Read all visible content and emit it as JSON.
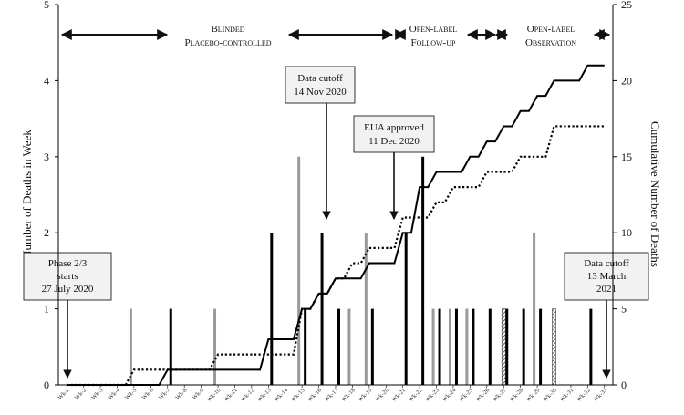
{
  "chart_data": {
    "type": "bar",
    "categories": [
      "Wk-1",
      "Wk-2",
      "Wk-3",
      "Wk-4",
      "Wk-5",
      "Wk-6",
      "Wk-7",
      "Wk-8",
      "Wk-9",
      "Wk-10",
      "Wk-11",
      "Wk-12",
      "Wk-13",
      "Wk-14",
      "Wk-15",
      "Wk-16",
      "Wk-17",
      "Wk-18",
      "Wk-19",
      "Wk-20",
      "Wk-21",
      "Wk-22",
      "Wk-23",
      "Wk-24",
      "Wk-25",
      "Wk-26",
      "Wk-27",
      "Wk-28",
      "Wk-29",
      "Wk-30",
      "Wk-31",
      "Wk-32",
      "Wk-33"
    ],
    "ylabel": "Number of Deaths in Week",
    "y2label": "Cumulative Number of Deaths",
    "ylim": [
      0,
      5
    ],
    "y2lim": [
      0,
      25
    ],
    "yticks": [
      "0",
      "1",
      "2",
      "3",
      "4",
      "5"
    ],
    "y2ticks": [
      "0",
      "5",
      "10",
      "15",
      "20",
      "25"
    ],
    "series": [
      {
        "style": "black-bar",
        "values": [
          0,
          0,
          0,
          0,
          0,
          0,
          1,
          0,
          0,
          0,
          0,
          0,
          2,
          0,
          1,
          2,
          1,
          0,
          1,
          0,
          2,
          3,
          1,
          1,
          1,
          1,
          1,
          1,
          1,
          0,
          0,
          1,
          0
        ]
      },
      {
        "style": "gray-bar",
        "values": [
          0,
          0,
          0,
          0,
          1,
          0,
          0,
          0,
          0,
          1,
          0,
          0,
          0,
          0,
          3,
          0,
          0,
          1,
          2,
          0,
          0,
          0,
          1,
          1,
          1,
          0,
          0,
          0,
          2,
          0,
          0,
          0,
          0
        ]
      },
      {
        "style": "hatched-bar",
        "values": [
          0,
          0,
          0,
          0,
          0,
          0,
          0,
          0,
          0,
          0,
          0,
          0,
          0,
          0,
          0,
          0,
          0,
          0,
          0,
          0,
          0,
          0,
          0,
          0,
          0,
          0,
          1,
          0,
          0,
          1,
          0,
          0,
          0
        ]
      },
      {
        "style": "solid-line",
        "axis": "right",
        "values": [
          0,
          0,
          0,
          0,
          0,
          0,
          1,
          1,
          1,
          1,
          1,
          1,
          3,
          3,
          5,
          6,
          7,
          7,
          8,
          8,
          10,
          13,
          14,
          14,
          15,
          16,
          17,
          18,
          19,
          20,
          20,
          21,
          21
        ]
      },
      {
        "style": "dotted-line",
        "axis": "right",
        "values": [
          0,
          0,
          0,
          0,
          1,
          1,
          1,
          1,
          1,
          2,
          2,
          2,
          2,
          2,
          5,
          6,
          7,
          8,
          9,
          9,
          11,
          11,
          12,
          13,
          13,
          14,
          14,
          15,
          15,
          17,
          17,
          17,
          17
        ]
      }
    ],
    "phases": [
      {
        "line1": "Blinded",
        "line2": "Placebo-controlled"
      },
      {
        "line1": "Open-label",
        "line2": "Follow-up"
      },
      {
        "line1": "Open-label",
        "line2": "Observation"
      }
    ],
    "annotations": [
      {
        "line1": "Phase 2/3",
        "line2": "starts",
        "line3": "27 July 2020",
        "at_week": "Wk-1"
      },
      {
        "line1": "Data cutoff",
        "line2": "14 Nov 2020",
        "at_week": "Wk-16"
      },
      {
        "line1": "EUA approved",
        "line2": "11 Dec 2020",
        "at_week": "Wk-20"
      },
      {
        "line1": "Data cutoff",
        "line2": "13 March",
        "line3": "2021",
        "at_week": "Wk-33"
      }
    ]
  }
}
